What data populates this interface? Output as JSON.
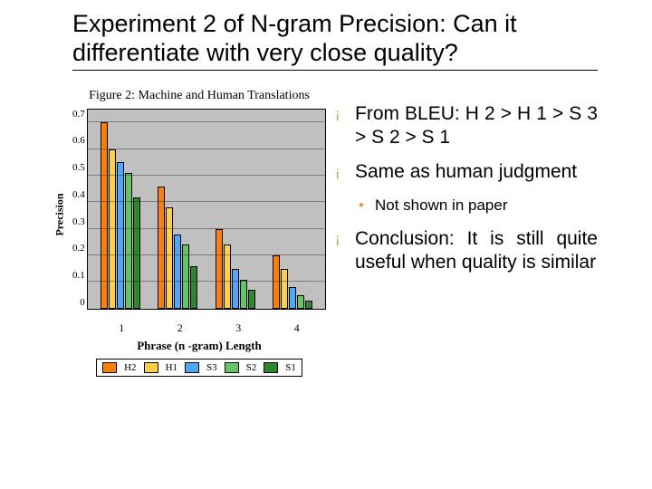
{
  "title": "Experiment 2 of N-gram Precision: Can it differentiate with very close quality?",
  "figure": {
    "caption": "Figure 2: Machine and Human Translations",
    "ylabel": "Precision",
    "xlabel": "Phrase (n -gram) Length",
    "ymax": 0.75,
    "yticks": [
      "0.7",
      "0.6",
      "0.5",
      "0.4",
      "0.3",
      "0.2",
      "0.1",
      "0"
    ],
    "categories": [
      "1",
      "2",
      "3",
      "4"
    ],
    "series": [
      {
        "name": "H2",
        "color": "#ff7f00"
      },
      {
        "name": "H1",
        "color": "#ffd040"
      },
      {
        "name": "S3",
        "color": "#4aa8ff"
      },
      {
        "name": "S2",
        "color": "#60c860"
      },
      {
        "name": "S1",
        "color": "#2a8a2a"
      }
    ],
    "data": {
      "1": [
        0.7,
        0.6,
        0.55,
        0.51,
        0.42
      ],
      "2": [
        0.46,
        0.38,
        0.28,
        0.24,
        0.16
      ],
      "3": [
        0.3,
        0.24,
        0.15,
        0.11,
        0.07
      ],
      "4": [
        0.2,
        0.15,
        0.08,
        0.05,
        0.03
      ]
    }
  },
  "bullets": {
    "b1": "From BLEU: H 2 > H 1 > S 3 > S 2 > S 1",
    "b2": "Same as human judgment",
    "b2a": "Not shown in paper",
    "b3": "Conclusion: It is still quite useful when quality is similar"
  }
}
